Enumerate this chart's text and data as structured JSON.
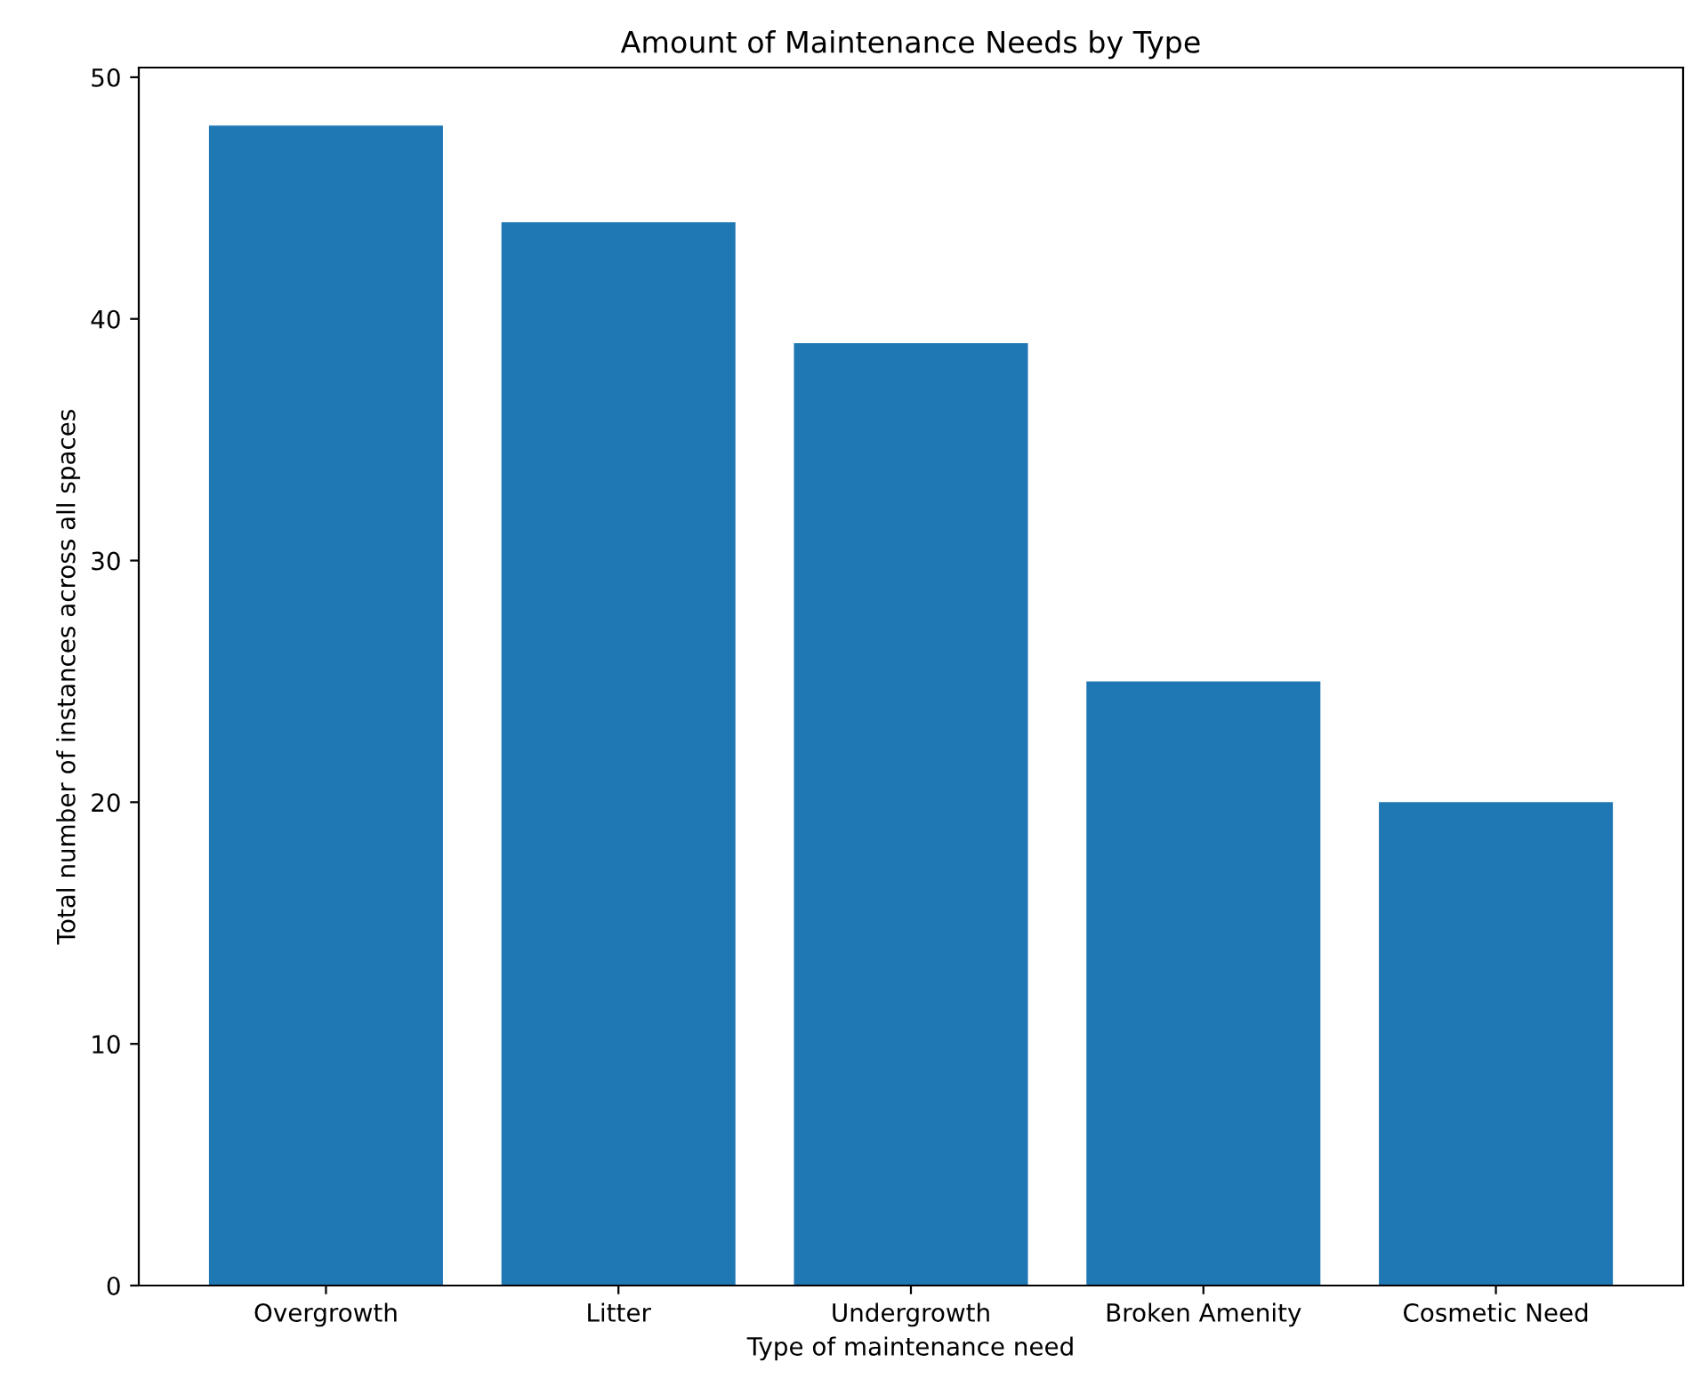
{
  "chart_data": {
    "type": "bar",
    "title": "Amount of Maintenance Needs by Type",
    "xlabel": "Type of maintenance need",
    "ylabel": "Total number of instances across all spaces",
    "categories": [
      "Overgrowth",
      "Litter",
      "Undergrowth",
      "Broken Amenity",
      "Cosmetic Need"
    ],
    "values": [
      48,
      44,
      39,
      25,
      20
    ],
    "color": "#1f77b4",
    "ylim": [
      0,
      50.4
    ],
    "yticks": [
      0,
      10,
      20,
      30,
      40,
      50
    ],
    "grid": false
  }
}
